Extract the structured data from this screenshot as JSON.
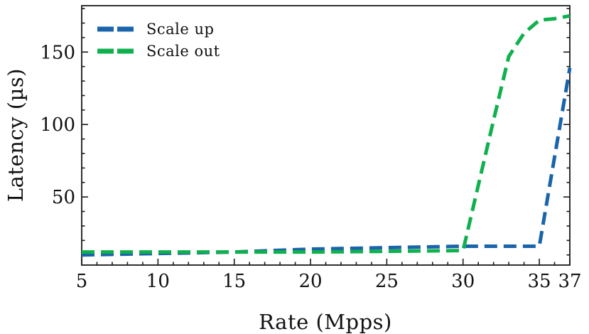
{
  "chart_data": {
    "type": "line",
    "title": "",
    "xlabel": "Rate (Mpps)",
    "ylabel": "Latency (µs)",
    "xlim": [
      5,
      37
    ],
    "ylim": [
      3,
      182
    ],
    "x_major_ticks": [
      5,
      10,
      15,
      20,
      25,
      30,
      35,
      37
    ],
    "x_minor_step": 1,
    "y_major_ticks": [
      50,
      100,
      150
    ],
    "y_minor_step": 10,
    "grid": false,
    "legend_position": "upper-left",
    "legend_frame": false,
    "axis_color": "#1a1a1a",
    "text_color": "#111111",
    "series": [
      {
        "name": "Scale up",
        "color": "#1a64ab",
        "style": "dashed",
        "x": [
          5,
          10,
          15,
          20,
          25,
          30,
          33,
          35,
          37
        ],
        "y": [
          10,
          11,
          12,
          14,
          15,
          16,
          16,
          16,
          139
        ]
      },
      {
        "name": "Scale out",
        "color": "#10b04e",
        "style": "dashed",
        "x": [
          5,
          10,
          15,
          20,
          25,
          30,
          31,
          32,
          33,
          34,
          35,
          36,
          37
        ],
        "y": [
          12,
          12,
          12,
          12,
          12.5,
          13,
          58,
          103,
          147,
          163,
          172,
          173,
          175
        ]
      }
    ]
  }
}
